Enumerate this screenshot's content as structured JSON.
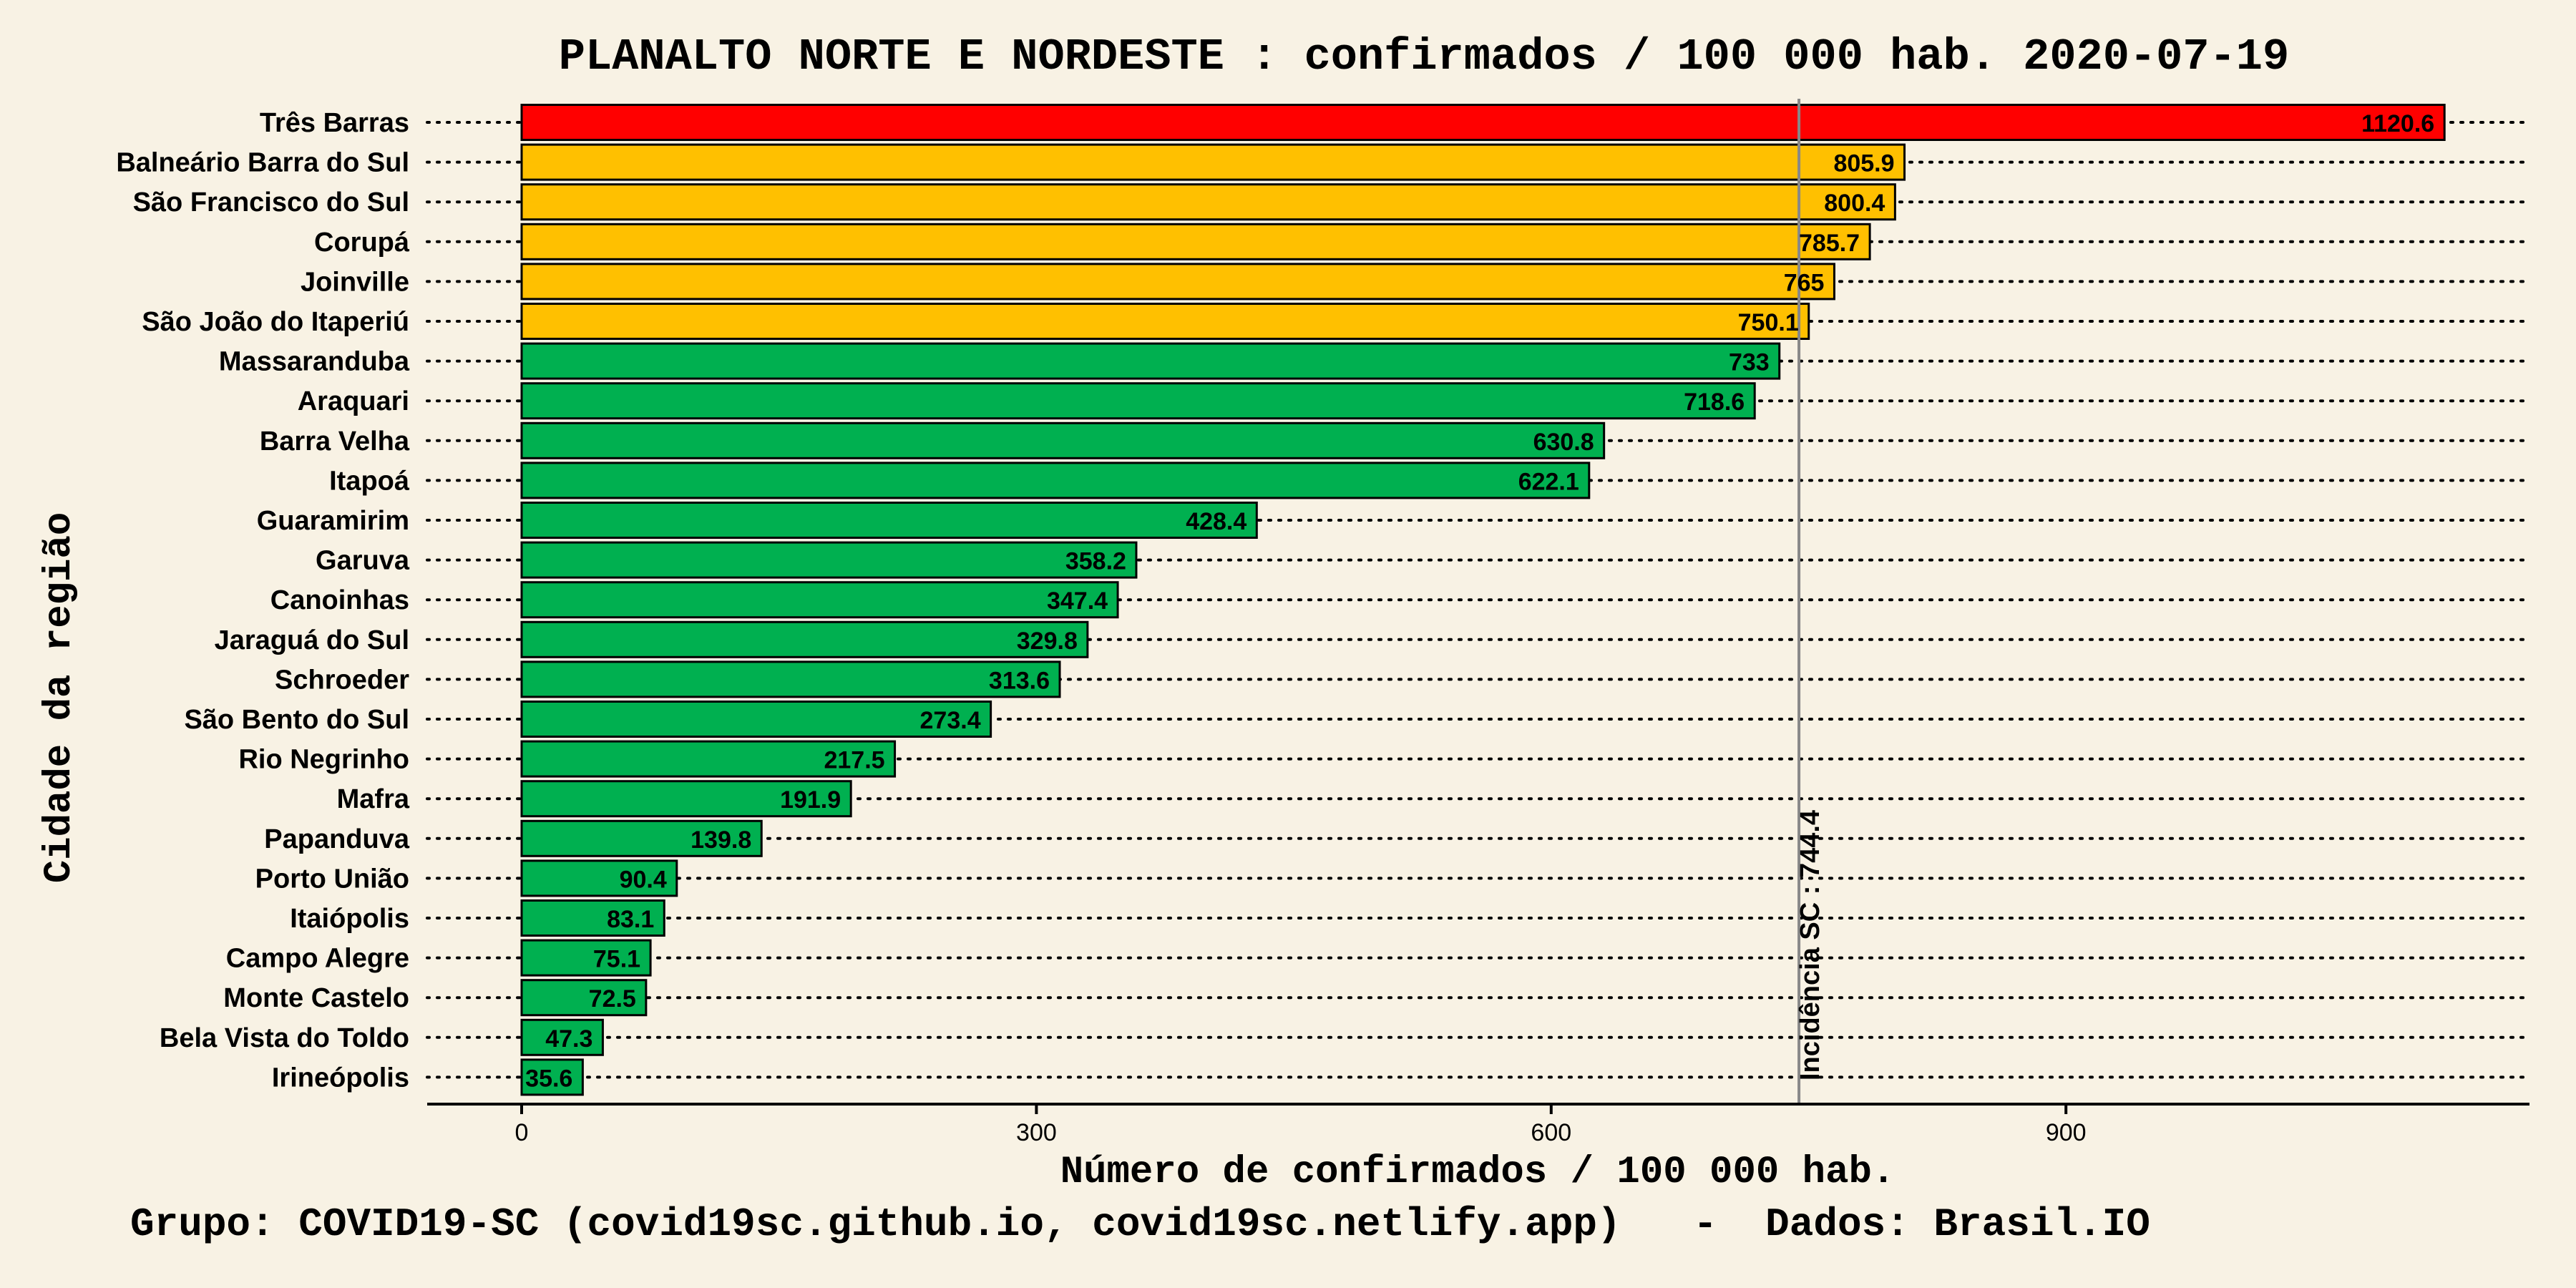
{
  "chart_data": {
    "type": "bar",
    "orientation": "horizontal",
    "title": "PLANALTO NORTE E NORDESTE : confirmados / 100 000 hab. 2020-07-19",
    "xlabel": "Número de confirmados / 100 000 hab.",
    "ylabel": "Cidade da região",
    "caption": "Grupo: COVID19-SC (covid19sc.github.io, covid19sc.netlify.app)   -  Dados: Brasil.IO",
    "xlim": [
      -55,
      1170
    ],
    "xticks": [
      0,
      300,
      600,
      900
    ],
    "grid": "dotted horizontal guide lines",
    "categories": [
      "Três Barras",
      "Balneário Barra do Sul",
      "São Francisco do Sul",
      "Corupá",
      "Joinville",
      "São João do Itaperiú",
      "Massaranduba",
      "Araquari",
      "Barra Velha",
      "Itapoá",
      "Guaramirim",
      "Garuva",
      "Canoinhas",
      "Jaraguá do Sul",
      "Schroeder",
      "São Bento do Sul",
      "Rio Negrinho",
      "Mafra",
      "Papanduva",
      "Porto União",
      "Itaiópolis",
      "Campo Alegre",
      "Monte Castelo",
      "Bela Vista do Toldo",
      "Irineópolis"
    ],
    "values": [
      1120.6,
      805.9,
      800.4,
      785.7,
      765,
      750.1,
      733,
      718.6,
      630.8,
      622.1,
      428.4,
      358.2,
      347.4,
      329.8,
      313.6,
      273.4,
      217.5,
      191.9,
      139.8,
      90.4,
      83.1,
      75.1,
      72.5,
      47.3,
      35.6
    ],
    "value_labels": [
      "1120.6",
      "805.9",
      "800.4",
      "785.7",
      "765",
      "750.1",
      "733",
      "718.6",
      "630.8",
      "622.1",
      "428.4",
      "358.2",
      "347.4",
      "329.8",
      "313.6",
      "273.4",
      "217.5",
      "191.9",
      "139.8",
      "90.4",
      "83.1",
      "75.1",
      "72.5",
      "47.3",
      "35.6"
    ],
    "bar_colors": [
      "#ff0000",
      "#ffc000",
      "#ffc000",
      "#ffc000",
      "#ffc000",
      "#ffc000",
      "#00b050",
      "#00b050",
      "#00b050",
      "#00b050",
      "#00b050",
      "#00b050",
      "#00b050",
      "#00b050",
      "#00b050",
      "#00b050",
      "#00b050",
      "#00b050",
      "#00b050",
      "#00b050",
      "#00b050",
      "#00b050",
      "#00b050",
      "#00b050",
      "#00b050"
    ],
    "reference_line": {
      "value": 744.4,
      "label": "Incidência SC : 744.4",
      "color": "#888888"
    },
    "background": "#f8f2e4"
  }
}
